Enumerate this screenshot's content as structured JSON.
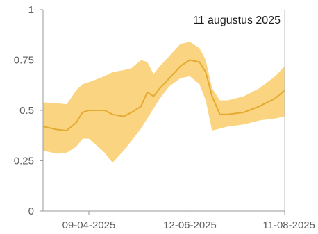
{
  "chart_data": {
    "type": "area",
    "title": "",
    "xlabel": "",
    "ylabel": "",
    "hover_date_label": "11 augustus 2025",
    "ylim": [
      0,
      1
    ],
    "xlim": [
      "2025-03-11",
      "2025-08-11"
    ],
    "y_ticks": [
      0,
      0.25,
      0.5,
      0.75,
      1
    ],
    "y_tick_labels": [
      "0",
      "0.25",
      "0.5",
      "0.75",
      "1"
    ],
    "x_ticks": [
      "2025-04-09",
      "2025-06-12",
      "2025-08-11"
    ],
    "x_tick_labels": [
      "09-04-2025",
      "12-06-2025",
      "11-08-2025"
    ],
    "grid": false,
    "colors": {
      "band": "#f9cd6a",
      "median_line": "#e4ab30",
      "axis": "#9a9a9a",
      "hover_line": "#bbbbbb"
    },
    "series": [
      {
        "x": [
          "2025-03-11",
          "2025-03-20",
          "2025-03-26",
          "2025-04-01",
          "2025-04-05",
          "2025-04-09",
          "2025-04-19",
          "2025-04-24",
          "2025-05-01",
          "2025-05-06",
          "2025-05-12",
          "2025-05-16",
          "2025-05-20",
          "2025-05-24",
          "2025-05-30",
          "2025-06-06",
          "2025-06-12",
          "2025-06-18",
          "2025-06-22",
          "2025-06-26",
          "2025-07-01",
          "2025-07-06",
          "2025-07-16",
          "2025-07-26",
          "2025-08-05",
          "2025-08-11"
        ],
        "median": [
          0.42,
          0.405,
          0.4,
          0.44,
          0.49,
          0.5,
          0.5,
          0.48,
          0.47,
          0.49,
          0.52,
          0.59,
          0.57,
          0.61,
          0.66,
          0.72,
          0.75,
          0.74,
          0.69,
          0.57,
          0.48,
          0.48,
          0.49,
          0.52,
          0.56,
          0.6
        ],
        "upper": [
          0.54,
          0.535,
          0.53,
          0.6,
          0.63,
          0.64,
          0.67,
          0.69,
          0.7,
          0.71,
          0.75,
          0.74,
          0.68,
          0.72,
          0.77,
          0.83,
          0.84,
          0.81,
          0.75,
          0.61,
          0.55,
          0.55,
          0.57,
          0.61,
          0.67,
          0.72
        ],
        "lower": [
          0.3,
          0.285,
          0.29,
          0.32,
          0.36,
          0.36,
          0.29,
          0.24,
          0.3,
          0.35,
          0.41,
          0.46,
          0.51,
          0.56,
          0.62,
          0.66,
          0.67,
          0.63,
          0.55,
          0.4,
          0.41,
          0.42,
          0.43,
          0.45,
          0.46,
          0.47
        ]
      }
    ]
  }
}
